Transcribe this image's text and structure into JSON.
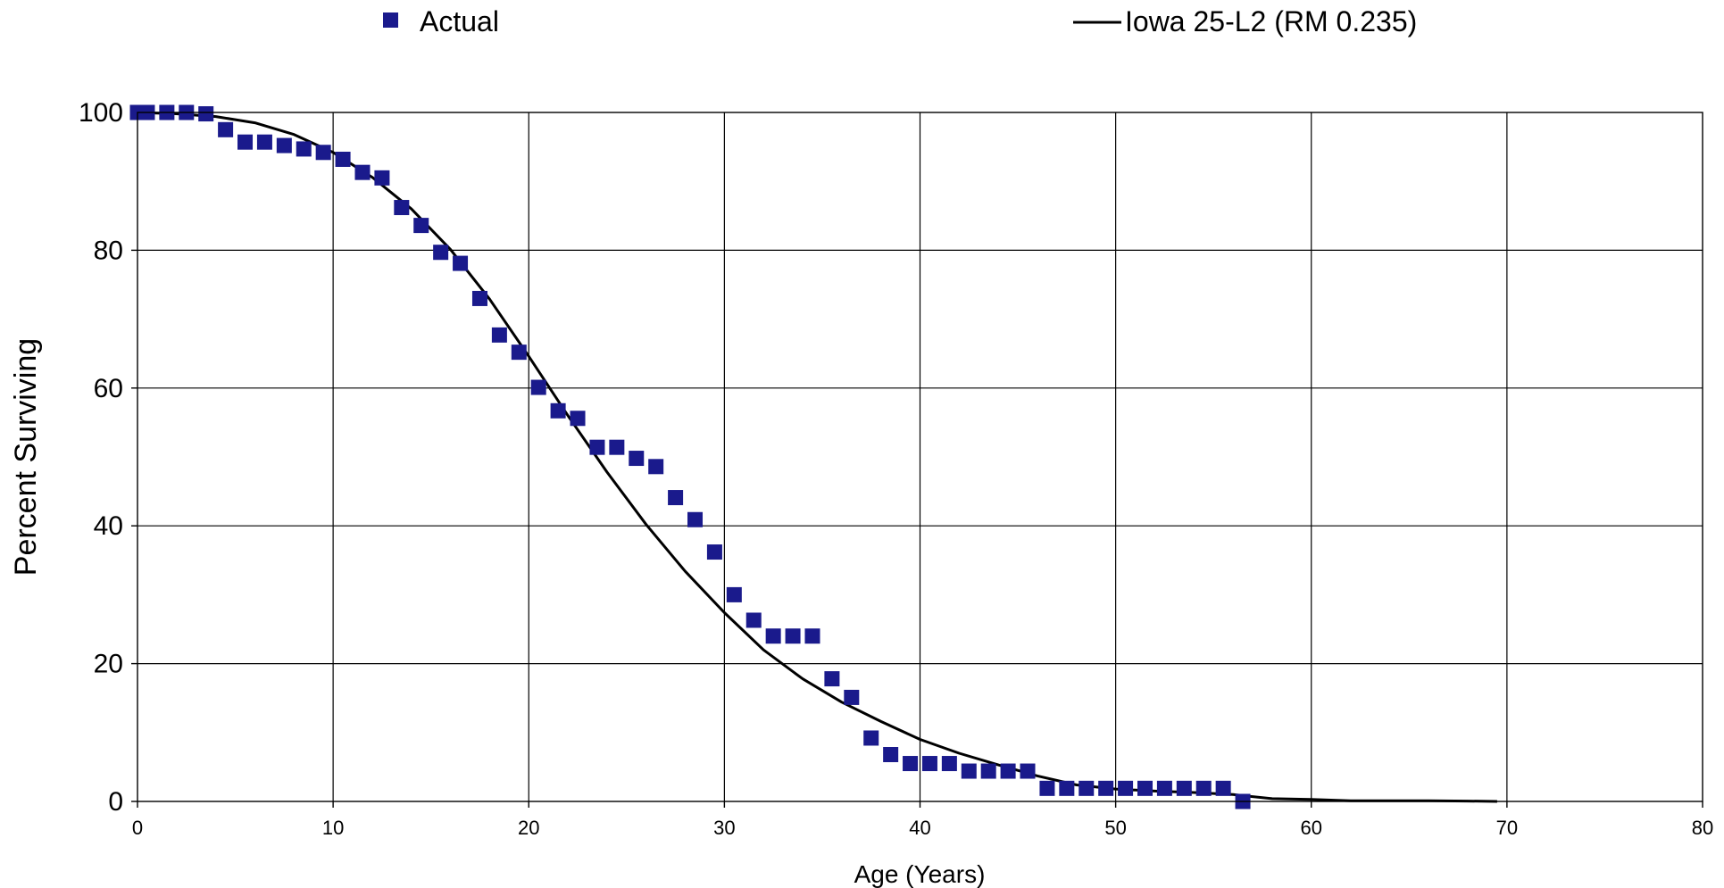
{
  "chart_data": {
    "type": "scatter",
    "title": "",
    "xlabel": "Age (Years)",
    "ylabel": "Percent Surviving",
    "xlim": [
      0,
      80
    ],
    "ylim": [
      0,
      100
    ],
    "xticks": [
      0,
      10,
      20,
      30,
      40,
      50,
      60,
      70,
      80
    ],
    "yticks": [
      0,
      20,
      40,
      60,
      80,
      100
    ],
    "grid": true,
    "legend_position": "top",
    "colors": {
      "actual": "#1a1a8c",
      "curve": "#000000"
    },
    "series": [
      {
        "name": "Actual",
        "type": "scatter",
        "marker": "square",
        "x": [
          0,
          0.5,
          1.5,
          2.5,
          3.5,
          4.5,
          5.5,
          6.5,
          7.5,
          8.5,
          9.5,
          10.5,
          11.5,
          12.5,
          13.5,
          14.5,
          15.5,
          16.5,
          17.5,
          18.5,
          19.5,
          20.5,
          21.5,
          22.5,
          23.5,
          24.5,
          25.5,
          26.5,
          27.5,
          28.5,
          29.5,
          30.5,
          31.5,
          32.5,
          33.5,
          34.5,
          35.5,
          36.5,
          37.5,
          38.5,
          39.5,
          40.5,
          41.5,
          42.5,
          43.5,
          44.5,
          45.5,
          46.5,
          47.5,
          48.5,
          49.5,
          50.5,
          51.5,
          52.5,
          53.5,
          54.5,
          55.5,
          56.5
        ],
        "y": [
          100,
          100,
          100,
          100,
          99.8,
          97.5,
          95.7,
          95.7,
          95.2,
          94.7,
          94.2,
          93.2,
          91.3,
          90.5,
          86.2,
          83.6,
          79.7,
          78.1,
          73.0,
          67.7,
          65.2,
          60.1,
          56.7,
          55.6,
          51.4,
          51.4,
          49.8,
          48.6,
          44.1,
          40.9,
          36.2,
          30.0,
          26.3,
          24.0,
          24.0,
          24.0,
          17.8,
          15.1,
          9.2,
          6.8,
          5.5,
          5.5,
          5.5,
          4.4,
          4.4,
          4.4,
          4.4,
          1.9,
          1.9,
          1.9,
          1.9,
          1.9,
          1.9,
          1.9,
          1.9,
          1.9,
          1.9,
          0
        ]
      },
      {
        "name": "Iowa 25-L2 (RM 0.235)",
        "type": "line",
        "x": [
          0,
          2,
          4,
          6,
          8,
          10,
          12,
          14,
          16,
          18,
          20,
          22,
          24,
          26,
          28,
          30,
          32,
          34,
          36,
          38,
          40,
          42,
          44,
          46,
          48,
          50,
          52,
          54,
          56,
          58,
          60,
          62,
          64,
          66,
          68,
          69.5
        ],
        "y": [
          100,
          99.8,
          99.4,
          98.5,
          96.8,
          94.2,
          90.6,
          86.0,
          80.1,
          72.9,
          64.6,
          56.0,
          47.8,
          40.2,
          33.4,
          27.4,
          22.0,
          17.8,
          14.4,
          11.6,
          9.0,
          7.0,
          5.3,
          3.7,
          2.4,
          1.8,
          1.5,
          1.3,
          1.0,
          0.4,
          0.3,
          0.1,
          0.1,
          0.1,
          0.05,
          0
        ]
      }
    ]
  }
}
